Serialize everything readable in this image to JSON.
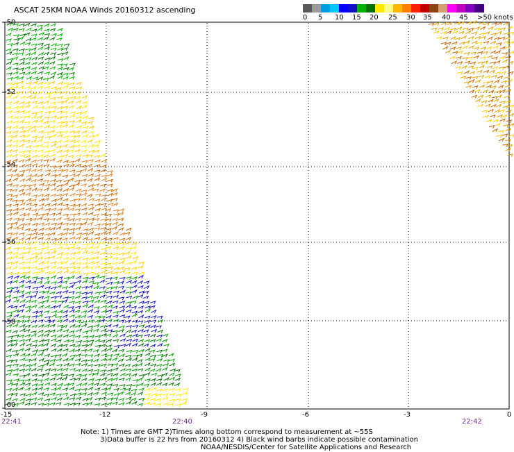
{
  "title": "ASCAT 25KM NOAA Winds 20160312 ascending",
  "legend": {
    "labels": [
      "0",
      "5",
      "10",
      "15",
      "20",
      "25",
      "30",
      "35",
      "40",
      "45",
      ">50 knots"
    ],
    "colors": [
      "#585858",
      "#9a9a9a",
      "#00a0e0",
      "#00c8ff",
      "#0000ff",
      "#1010c0",
      "#00b000",
      "#007000",
      "#ffe800",
      "#ffff88",
      "#ffb800",
      "#ff8000",
      "#ff2000",
      "#c00000",
      "#8b4513",
      "#d2a070",
      "#ff00ff",
      "#c000c0",
      "#8000c0",
      "#400080"
    ]
  },
  "map": {
    "y_ticks": [
      "-50",
      "-52",
      "-54",
      "-56",
      "-58",
      "-60"
    ],
    "x_ticks": [
      "-15",
      "-12",
      "-9",
      "-6",
      "-3",
      "0"
    ],
    "times": [
      "22:41",
      "22:40",
      "22:42"
    ]
  },
  "notes": {
    "line1": "Note: 1) Times are GMT 2)Times along bottom correspond to measurement at ~55S",
    "line2": "3)Data buffer is 22 hrs from 20160312 4) Black wind barbs indicate possible contamination",
    "line3": "NOAA/NESDIS/Center for Satellite Applications and Research"
  }
}
